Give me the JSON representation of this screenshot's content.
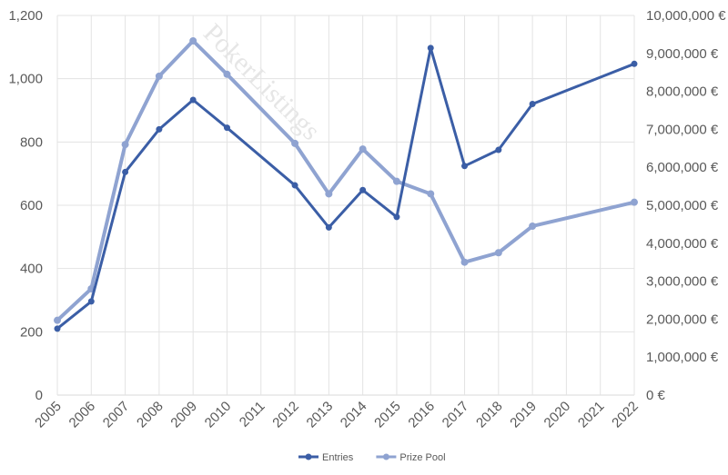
{
  "chart_data": {
    "type": "line",
    "watermark": "PokerListings",
    "x": [
      "2005",
      "2006",
      "2007",
      "2008",
      "2009",
      "2010",
      "2011",
      "2012",
      "2013",
      "2014",
      "2015",
      "2016",
      "2017",
      "2018",
      "2019",
      "2020",
      "2021",
      "2022"
    ],
    "left_axis": {
      "ylim": [
        0,
        1200
      ],
      "ticks": [
        0,
        200,
        400,
        600,
        800,
        1000,
        1200
      ],
      "tick_labels": [
        "0",
        "200",
        "400",
        "600",
        "800",
        "1,000",
        "1,200"
      ]
    },
    "right_axis": {
      "ylim": [
        0,
        10000000
      ],
      "ticks": [
        0,
        1000000,
        2000000,
        3000000,
        4000000,
        5000000,
        6000000,
        7000000,
        8000000,
        9000000,
        10000000
      ],
      "tick_labels": [
        "0 €",
        "1,000,000 €",
        "2,000,000 €",
        "3,000,000 €",
        "4,000,000 €",
        "5,000,000 €",
        "6,000,000 €",
        "7,000,000 €",
        "8,000,000 €",
        "9,000,000 €",
        "10,000,000 €"
      ]
    },
    "grid": true,
    "legend_position": "bottom",
    "series": [
      {
        "name": "Entries",
        "axis": "left",
        "color": "#3b5ea6",
        "points": [
          {
            "x": "2005",
            "y": 210
          },
          {
            "x": "2006",
            "y": 296
          },
          {
            "x": "2007",
            "y": 705
          },
          {
            "x": "2008",
            "y": 840
          },
          {
            "x": "2009",
            "y": 933
          },
          {
            "x": "2010",
            "y": 845
          },
          {
            "x": "2012",
            "y": 663
          },
          {
            "x": "2013",
            "y": 530
          },
          {
            "x": "2014",
            "y": 648
          },
          {
            "x": "2015",
            "y": 563
          },
          {
            "x": "2016",
            "y": 1097
          },
          {
            "x": "2017",
            "y": 724
          },
          {
            "x": "2018",
            "y": 775
          },
          {
            "x": "2019",
            "y": 920
          },
          {
            "x": "2022",
            "y": 1047
          }
        ]
      },
      {
        "name": "Prize Pool",
        "axis": "right",
        "color": "#8fa3d1",
        "points": [
          {
            "x": "2005",
            "y": 1970000
          },
          {
            "x": "2006",
            "y": 2800000
          },
          {
            "x": "2007",
            "y": 6600000
          },
          {
            "x": "2008",
            "y": 8400000
          },
          {
            "x": "2009",
            "y": 9330000
          },
          {
            "x": "2010",
            "y": 8450000
          },
          {
            "x": "2012",
            "y": 6630000
          },
          {
            "x": "2013",
            "y": 5300000
          },
          {
            "x": "2014",
            "y": 6480000
          },
          {
            "x": "2015",
            "y": 5630000
          },
          {
            "x": "2016",
            "y": 5300000
          },
          {
            "x": "2017",
            "y": 3500000
          },
          {
            "x": "2018",
            "y": 3750000
          },
          {
            "x": "2019",
            "y": 4450000
          },
          {
            "x": "2022",
            "y": 5080000
          }
        ]
      }
    ]
  }
}
